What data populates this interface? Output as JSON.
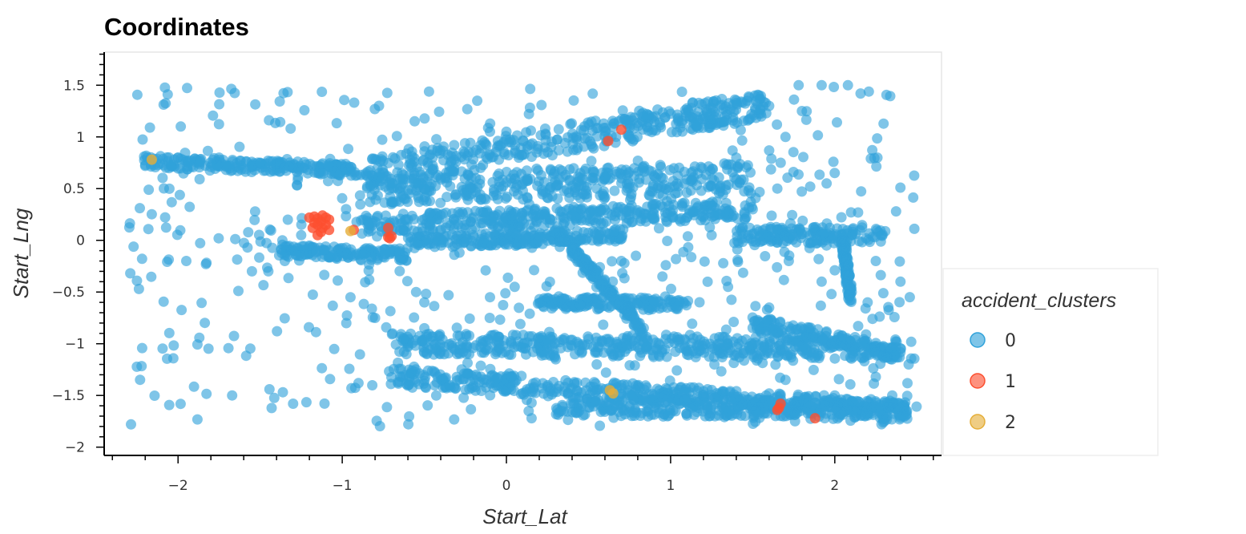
{
  "chart_data": {
    "type": "scatter",
    "title": "Coordinates",
    "xlabel": "Start_Lat",
    "ylabel": "Start_Lng",
    "xlim": [
      -2.45,
      2.65
    ],
    "ylim": [
      -2.08,
      1.82
    ],
    "x_ticks": [
      -2,
      -1,
      0,
      1,
      2
    ],
    "x_tick_labels": [
      "−2",
      "−1",
      "0",
      "1",
      "2"
    ],
    "y_ticks": [
      -2,
      -1.5,
      -1,
      -0.5,
      0,
      0.5,
      1,
      1.5
    ],
    "y_tick_labels": [
      "−2",
      "−1.5",
      "−1",
      "−0.5",
      "0",
      "0.5",
      "1",
      "1.5"
    ],
    "grid": false,
    "legend": {
      "title": "accident_clusters",
      "placement": "right"
    },
    "series": [
      {
        "name": "0",
        "color": "#30a2da",
        "regions": [
          {
            "shape": "band",
            "from": [
              -2.2,
              0.76
            ],
            "to": [
              -0.9,
              0.68
            ],
            "thickness": 0.12
          },
          {
            "shape": "band",
            "from": [
              -0.85,
              0.65
            ],
            "to": [
              1.6,
              1.32
            ],
            "thickness": 0.28
          },
          {
            "shape": "band",
            "from": [
              -0.9,
              0.5
            ],
            "to": [
              1.5,
              0.6
            ],
            "thickness": 0.3
          },
          {
            "shape": "band",
            "from": [
              -0.9,
              0.15
            ],
            "to": [
              1.5,
              0.3
            ],
            "thickness": 0.18
          },
          {
            "shape": "band",
            "from": [
              -0.6,
              -0.02
            ],
            "to": [
              0.7,
              0.05
            ],
            "thickness": 0.12
          },
          {
            "shape": "band",
            "from": [
              1.4,
              0.05
            ],
            "to": [
              2.3,
              0.05
            ],
            "thickness": 0.16
          },
          {
            "shape": "band",
            "from": [
              -1.4,
              -0.1
            ],
            "to": [
              -0.6,
              -0.15
            ],
            "thickness": 0.12
          },
          {
            "shape": "band",
            "from": [
              0.2,
              -0.6
            ],
            "to": [
              1.1,
              -0.62
            ],
            "thickness": 0.12
          },
          {
            "shape": "band",
            "from": [
              -0.7,
              -1.0
            ],
            "to": [
              2.4,
              -1.05
            ],
            "thickness": 0.2
          },
          {
            "shape": "band",
            "from": [
              -0.7,
              -1.32
            ],
            "to": [
              2.45,
              -1.65
            ],
            "thickness": 0.18
          },
          {
            "shape": "band",
            "from": [
              0.3,
              -1.6
            ],
            "to": [
              2.45,
              -1.65
            ],
            "thickness": 0.18
          },
          {
            "shape": "band",
            "from": [
              0.3,
              0.1
            ],
            "to": [
              0.85,
              -0.9
            ],
            "thickness": 0.1
          },
          {
            "shape": "band",
            "from": [
              1.5,
              -0.8
            ],
            "to": [
              2.4,
              -1.1
            ],
            "thickness": 0.15
          },
          {
            "shape": "band",
            "from": [
              2.05,
              0.0
            ],
            "to": [
              2.1,
              -0.6
            ],
            "thickness": 0.06
          },
          {
            "shape": "scatter",
            "xlim": [
              -2.3,
              2.5
            ],
            "ylim": [
              -1.8,
              1.5
            ],
            "count": 520
          }
        ],
        "points": [
          [
            -2.2,
            0.72
          ],
          [
            -2.0,
            0.8
          ],
          [
            -1.75,
            0.8
          ],
          [
            -1.5,
            0.75
          ],
          [
            -1.3,
            0.7
          ],
          [
            -1.0,
            0.68
          ],
          [
            -1.95,
            -0.2
          ],
          [
            -1.83,
            -0.23
          ],
          [
            -1.55,
            -0.3
          ],
          [
            -1.45,
            -0.3
          ],
          [
            -1.35,
            -0.2
          ],
          [
            -0.95,
            -0.55
          ],
          [
            -0.55,
            -0.5
          ],
          [
            -0.5,
            -0.6
          ],
          [
            -0.1,
            -0.55
          ],
          [
            0.05,
            -0.45
          ],
          [
            0.2,
            0.05
          ],
          [
            0.4,
            0.25
          ],
          [
            1.3,
            0.25
          ],
          [
            1.5,
            0.3
          ],
          [
            1.65,
            0.5
          ],
          [
            1.85,
            0.52
          ],
          [
            1.95,
            0.55
          ],
          [
            1.7,
            1.0
          ],
          [
            1.8,
            1.25
          ],
          [
            1.92,
            1.5
          ],
          [
            2.08,
            1.5
          ],
          [
            1.78,
            1.5
          ],
          [
            1.72,
            -0.2
          ],
          [
            1.92,
            -0.4
          ],
          [
            2.25,
            -0.2
          ],
          [
            2.4,
            -0.4
          ],
          [
            2.45,
            -1.2
          ],
          [
            2.35,
            -1.5
          ],
          [
            -0.1,
            1.05
          ],
          [
            0.0,
            1.05
          ],
          [
            -0.45,
            0.8
          ],
          [
            0.6,
            1.05
          ],
          [
            1.2,
            1.2
          ],
          [
            1.6,
            1.3
          ],
          [
            -0.5,
            0.5
          ],
          [
            0.1,
            0.48
          ],
          [
            0.9,
            0.35
          ],
          [
            1.25,
            0.05
          ],
          [
            0.7,
            -0.2
          ],
          [
            0.95,
            -0.35
          ],
          [
            1.35,
            -0.45
          ],
          [
            1.6,
            -0.65
          ],
          [
            2.2,
            -0.6
          ],
          [
            -0.3,
            -1.1
          ],
          [
            0.55,
            -1.2
          ],
          [
            1.2,
            -1.5
          ],
          [
            1.7,
            -1.35
          ],
          [
            2.0,
            -1.5
          ],
          [
            2.3,
            -1.75
          ],
          [
            0.3,
            -1.15
          ],
          [
            -0.5,
            -0.85
          ],
          [
            -0.8,
            -0.75
          ],
          [
            -1.2,
            -0.05
          ],
          [
            -1.25,
            0.05
          ],
          [
            -0.6,
            0.2
          ],
          [
            -0.7,
            0.35
          ],
          [
            0.45,
            0.65
          ],
          [
            1.4,
            0.8
          ]
        ]
      },
      {
        "name": "1",
        "color": "#fc4f30",
        "points": [
          [
            -1.2,
            0.22
          ],
          [
            -1.17,
            0.23
          ],
          [
            -1.15,
            0.21
          ],
          [
            -1.12,
            0.24
          ],
          [
            -1.1,
            0.22
          ],
          [
            -1.08,
            0.2
          ],
          [
            -1.15,
            0.15
          ],
          [
            -1.12,
            0.12
          ],
          [
            -1.13,
            0.08
          ],
          [
            -1.15,
            0.05
          ],
          [
            -1.18,
            0.12
          ],
          [
            -1.1,
            0.15
          ],
          [
            -1.08,
            0.1
          ],
          [
            -1.13,
            0.18
          ],
          [
            -1.17,
            0.17
          ],
          [
            -0.93,
            0.1
          ],
          [
            -0.72,
            0.12
          ],
          [
            -0.72,
            0.03
          ],
          [
            -0.7,
            0.04
          ],
          [
            -0.71,
            0.02
          ],
          [
            0.62,
            0.96
          ],
          [
            0.7,
            1.07
          ],
          [
            1.67,
            -1.58
          ],
          [
            1.66,
            -1.62
          ],
          [
            1.65,
            -1.64
          ],
          [
            1.88,
            -1.72
          ]
        ]
      },
      {
        "name": "2",
        "color": "#e5ae38",
        "points": [
          [
            -2.16,
            0.78
          ],
          [
            0.63,
            -1.45
          ],
          [
            0.65,
            -1.48
          ],
          [
            -0.95,
            0.09
          ]
        ]
      }
    ]
  }
}
